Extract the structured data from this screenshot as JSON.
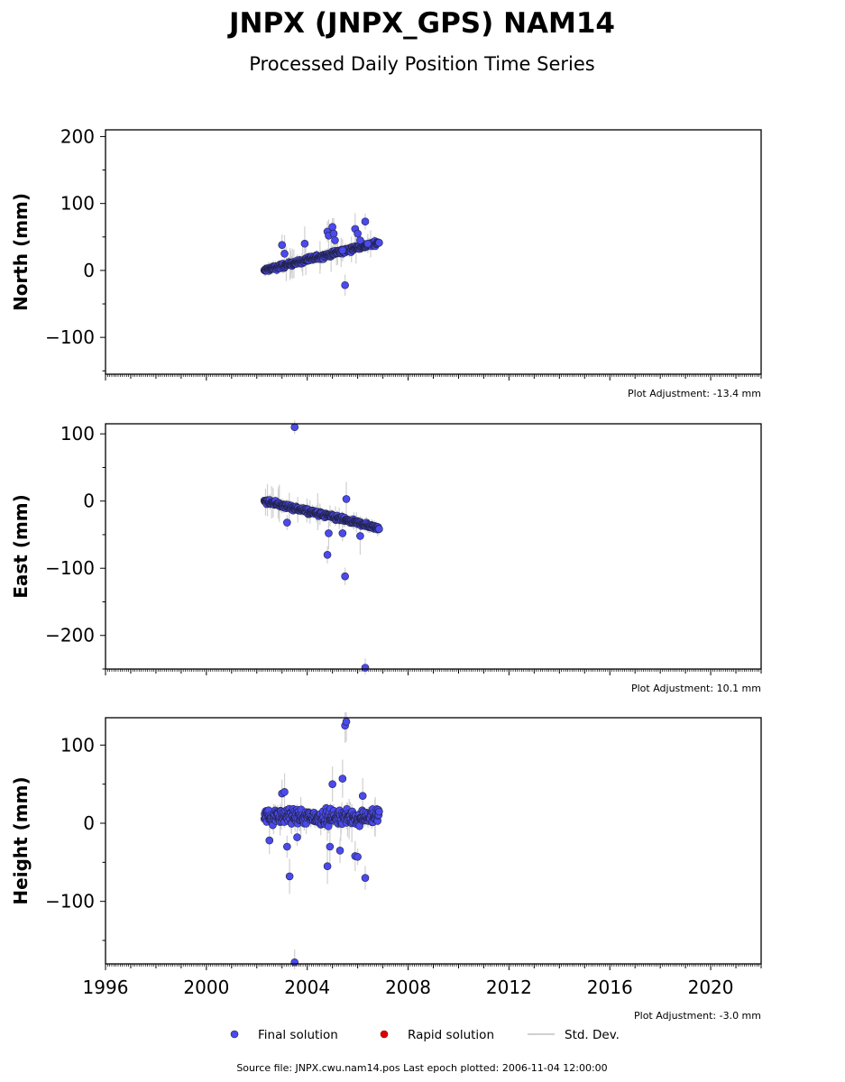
{
  "chart_data": [
    {
      "type": "scatter",
      "title": "JNPX (JNPX_GPS) NAM14",
      "subtitle": "Processed Daily Position Time Series",
      "ylabel": "North (mm)",
      "xlim": [
        1996,
        2022
      ],
      "ylim": [
        -155,
        210
      ],
      "yticks": [
        -100,
        0,
        100,
        200
      ],
      "adjustment": "Plot Adjustment: -13.4 mm",
      "trend": {
        "start": [
          2002.3,
          0
        ],
        "end": [
          2006.85,
          42
        ],
        "spread": 5
      },
      "outliers": [
        [
          2003.0,
          38
        ],
        [
          2003.1,
          25
        ],
        [
          2003.9,
          40
        ],
        [
          2004.8,
          58
        ],
        [
          2004.85,
          52
        ],
        [
          2005.0,
          65
        ],
        [
          2005.05,
          55
        ],
        [
          2005.1,
          45
        ],
        [
          2005.4,
          30
        ],
        [
          2005.5,
          -22
        ],
        [
          2005.9,
          62
        ],
        [
          2006.0,
          55
        ],
        [
          2006.3,
          73
        ],
        [
          2006.4,
          40
        ],
        [
          2006.1,
          45
        ]
      ],
      "series": [
        {
          "name": "Final solution",
          "color": "#4a4aee"
        },
        {
          "name": "Rapid solution",
          "color": "#dd0000"
        },
        {
          "name": "Std. Dev.",
          "color": "#d0d0d0"
        }
      ]
    },
    {
      "type": "scatter",
      "ylabel": "East (mm)",
      "xlim": [
        1996,
        2022
      ],
      "ylim": [
        -250,
        115
      ],
      "yticks": [
        -200,
        -100,
        0,
        100
      ],
      "adjustment": "Plot Adjustment: 10.1 mm",
      "trend": {
        "start": [
          2002.3,
          0
        ],
        "end": [
          2006.85,
          -40
        ],
        "spread": 5
      },
      "outliers": [
        [
          2003.2,
          -32
        ],
        [
          2003.5,
          110
        ],
        [
          2004.85,
          -48
        ],
        [
          2004.8,
          -80
        ],
        [
          2005.4,
          -48
        ],
        [
          2005.5,
          -112
        ],
        [
          2005.55,
          3
        ],
        [
          2006.1,
          -52
        ],
        [
          2006.3,
          -248
        ]
      ]
    },
    {
      "type": "scatter",
      "ylabel": "Height (mm)",
      "xlim": [
        1996,
        2022
      ],
      "ylim": [
        -180,
        135
      ],
      "yticks": [
        -100,
        0,
        100
      ],
      "xticks": [
        1996,
        2000,
        2004,
        2008,
        2012,
        2016,
        2020
      ],
      "adjustment": "Plot Adjustment: -3.0 mm",
      "trend": {
        "start": [
          2002.3,
          8
        ],
        "end": [
          2006.85,
          8
        ],
        "spread": 14
      },
      "outliers": [
        [
          2002.5,
          -22
        ],
        [
          2003.0,
          38
        ],
        [
          2003.1,
          40
        ],
        [
          2003.2,
          -30
        ],
        [
          2003.3,
          -68
        ],
        [
          2003.5,
          -178
        ],
        [
          2003.6,
          -18
        ],
        [
          2004.8,
          -55
        ],
        [
          2004.9,
          -30
        ],
        [
          2005.0,
          50
        ],
        [
          2005.3,
          -35
        ],
        [
          2005.4,
          57
        ],
        [
          2005.5,
          125
        ],
        [
          2005.55,
          130
        ],
        [
          2005.9,
          -42
        ],
        [
          2006.0,
          -43
        ],
        [
          2006.3,
          -70
        ],
        [
          2006.2,
          35
        ]
      ]
    }
  ],
  "legend": {
    "final": "Final solution",
    "rapid": "Rapid solution",
    "stddev": "Std. Dev."
  },
  "footer": "Source file: JNPX.cwu.nam14.pos  Last epoch plotted: 2006-11-04 12:00:00"
}
